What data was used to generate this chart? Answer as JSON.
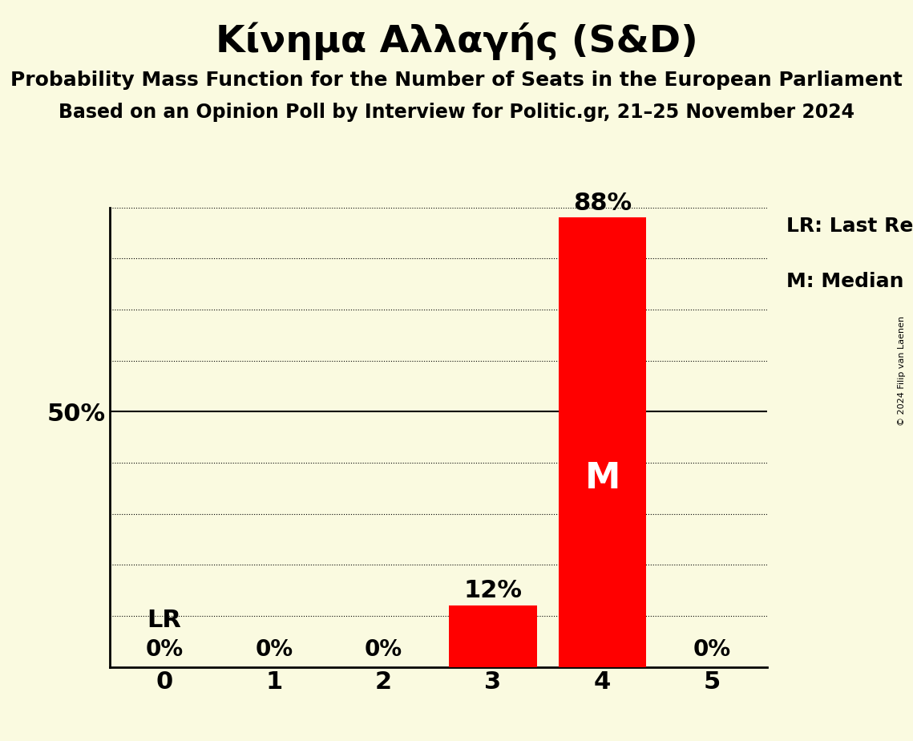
{
  "title": "Κίνημα Αλλαγής (S&D)",
  "subtitle1": "Probability Mass Function for the Number of Seats in the European Parliament",
  "subtitle2": "Based on an Opinion Poll by Interview for Politic.gr, 21–25 November 2024",
  "copyright": "© 2024 Filip van Laenen",
  "seats": [
    0,
    1,
    2,
    3,
    4,
    5
  ],
  "probabilities": [
    0.0,
    0.0,
    0.0,
    0.12,
    0.88,
    0.0
  ],
  "bar_color": "#FF0000",
  "bar_labels": [
    "0%",
    "0%",
    "0%",
    "12%",
    "88%",
    "0%"
  ],
  "median": 4,
  "last_result_seat": 0,
  "background_color": "#FAFAE0",
  "ylim": [
    0,
    0.9
  ],
  "legend_lr": "LR: Last Result",
  "legend_m": "M: Median",
  "lr_annotation": "LR",
  "title_fontsize": 34,
  "subtitle1_fontsize": 18,
  "subtitle2_fontsize": 17,
  "bar_label_fontsize": 22,
  "zero_label_fontsize": 20,
  "xtick_fontsize": 22,
  "ytick_fontsize": 22,
  "median_fontsize": 32,
  "lr_fontsize": 22,
  "legend_fontsize": 18,
  "copyright_fontsize": 8
}
